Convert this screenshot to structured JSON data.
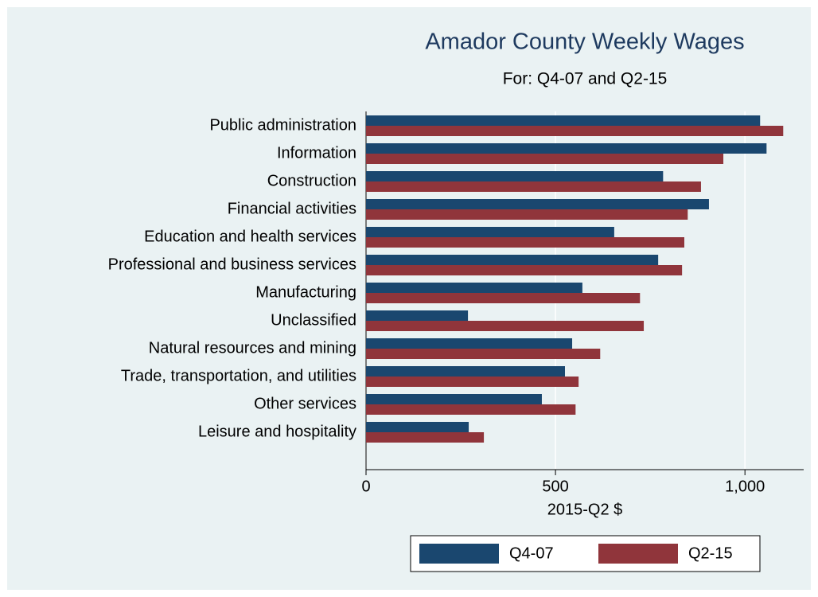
{
  "chart_data": {
    "type": "hbar",
    "title": "Amador County Weekly Wages",
    "subtitle": "For: Q4-07 and Q2-15",
    "x_label": "2015-Q2 $",
    "categories": [
      "Public administration",
      "Information",
      "Construction",
      "Financial activities",
      "Education and health services",
      "Professional and business services",
      "Manufacturing",
      "Unclassified",
      "Natural resources and mining",
      "Trade, transportation, and utilities",
      "Other services",
      "Leisure and hospitality"
    ],
    "series": [
      {
        "name": "Q4-07",
        "color": "#1a476f",
        "values": [
          1040,
          1057,
          784,
          905,
          655,
          771,
          571,
          269,
          544,
          525,
          464,
          271
        ]
      },
      {
        "name": "Q2-15",
        "color": "#90353b",
        "values": [
          1101,
          943,
          884,
          849,
          840,
          834,
          723,
          733,
          618,
          561,
          553,
          311
        ]
      }
    ],
    "xlim": [
      0,
      1155
    ],
    "xticks": [
      0,
      500,
      {
        "value": 1000,
        "label": "1,000"
      }
    ],
    "grid": true,
    "legend": "bottom"
  }
}
